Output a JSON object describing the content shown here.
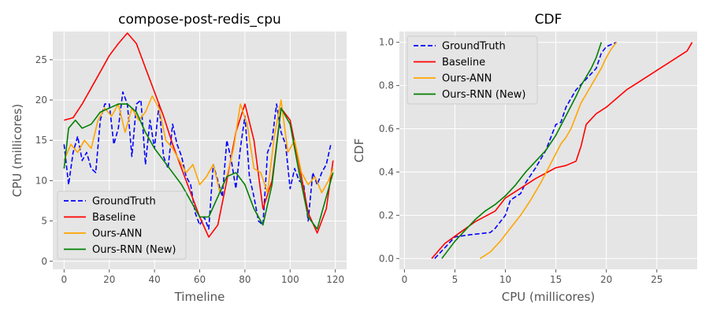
{
  "chart_data": [
    {
      "type": "line",
      "title": "compose-post-redis_cpu",
      "xlabel": "Timeline",
      "ylabel": "CPU (millicores)",
      "xlim": [
        -5,
        125
      ],
      "ylim": [
        -1,
        28.5
      ],
      "xticks": [
        0,
        20,
        40,
        60,
        80,
        100,
        120
      ],
      "yticks": [
        0,
        5,
        10,
        15,
        20,
        25
      ],
      "grid": true,
      "legend_position": "lower-left",
      "series": [
        {
          "name": "GroundTruth",
          "color": "#0000ff",
          "dash": "dashed",
          "x": [
            0,
            2,
            4,
            6,
            8,
            10,
            12,
            14,
            16,
            18,
            20,
            22,
            24,
            26,
            28,
            30,
            32,
            34,
            36,
            38,
            40,
            42,
            44,
            46,
            48,
            50,
            52,
            54,
            56,
            58,
            60,
            62,
            64,
            66,
            68,
            70,
            72,
            74,
            76,
            78,
            80,
            82,
            84,
            86,
            88,
            90,
            92,
            94,
            96,
            98,
            100,
            102,
            104,
            106,
            108,
            110,
            112,
            114,
            116,
            118
          ],
          "y": [
            14.5,
            9.5,
            13.5,
            15.5,
            12.5,
            13.5,
            11.5,
            11.0,
            17.5,
            19.5,
            19.5,
            14.5,
            16.5,
            21.0,
            19.5,
            13.0,
            19.5,
            20.0,
            12.0,
            17.5,
            14.0,
            19.5,
            13.0,
            11.5,
            17.0,
            14.5,
            13.0,
            10.5,
            9.5,
            6.0,
            4.5,
            5.5,
            4.0,
            12.0,
            10.0,
            8.0,
            15.0,
            12.5,
            9.0,
            14.0,
            18.0,
            10.5,
            8.0,
            5.0,
            4.5,
            13.5,
            15.0,
            19.5,
            16.0,
            14.5,
            9.0,
            11.5,
            10.0,
            9.5,
            5.0,
            11.0,
            9.5,
            11.0,
            12.0,
            14.5
          ]
        },
        {
          "name": "Baseline",
          "color": "#ff0000",
          "dash": "solid",
          "x": [
            0,
            4,
            8,
            12,
            16,
            20,
            24,
            28,
            32,
            36,
            40,
            44,
            48,
            52,
            56,
            60,
            64,
            68,
            72,
            76,
            80,
            84,
            88,
            92,
            96,
            100,
            104,
            108,
            112,
            116,
            119
          ],
          "y": [
            17.5,
            17.8,
            19.5,
            21.5,
            23.5,
            25.5,
            27.0,
            28.3,
            27.0,
            24.0,
            21.0,
            18.0,
            14.5,
            11.5,
            8.5,
            5.5,
            3.0,
            4.5,
            10.0,
            16.0,
            19.5,
            15.0,
            6.5,
            10.0,
            19.0,
            17.5,
            12.0,
            6.0,
            3.5,
            6.5,
            12.5
          ]
        },
        {
          "name": "Ours-ANN",
          "color": "#ffa500",
          "dash": "solid",
          "x": [
            0,
            3,
            6,
            9,
            12,
            15,
            18,
            21,
            24,
            27,
            30,
            33,
            36,
            39,
            42,
            45,
            48,
            51,
            54,
            57,
            60,
            63,
            66,
            69,
            72,
            75,
            78,
            81,
            84,
            87,
            90,
            93,
            96,
            99,
            102,
            105,
            108,
            111,
            114,
            117,
            119
          ],
          "y": [
            12.5,
            14.5,
            13.5,
            15.0,
            14.0,
            17.5,
            19.0,
            18.0,
            19.5,
            16.0,
            19.0,
            17.5,
            18.5,
            20.5,
            19.0,
            15.0,
            14.0,
            12.5,
            11.0,
            12.0,
            9.5,
            10.5,
            12.0,
            8.5,
            10.5,
            14.0,
            19.5,
            17.0,
            11.5,
            11.0,
            8.5,
            15.5,
            20.0,
            13.5,
            15.0,
            11.0,
            9.5,
            10.5,
            8.5,
            10.0,
            11.5
          ]
        },
        {
          "name": "Ours-RNN (New)",
          "color": "#008000",
          "dash": "solid",
          "x": [
            0,
            2,
            5,
            8,
            12,
            16,
            20,
            24,
            28,
            32,
            36,
            40,
            44,
            48,
            52,
            56,
            60,
            64,
            68,
            72,
            76,
            80,
            84,
            88,
            92,
            96,
            100,
            104,
            108,
            112,
            116,
            119
          ],
          "y": [
            11.5,
            16.5,
            17.5,
            16.5,
            17.0,
            18.5,
            19.0,
            19.5,
            19.5,
            18.5,
            16.0,
            14.0,
            12.5,
            11.0,
            9.5,
            7.5,
            5.5,
            5.5,
            8.0,
            10.5,
            11.0,
            9.5,
            6.5,
            4.5,
            9.5,
            19.0,
            17.0,
            11.0,
            5.5,
            4.0,
            8.0,
            11.0
          ]
        }
      ]
    },
    {
      "type": "line",
      "title": "CDF",
      "xlabel": "CPU (millicores)",
      "ylabel": "CDF",
      "xlim": [
        -0.5,
        29
      ],
      "ylim": [
        -0.05,
        1.05
      ],
      "xticks": [
        0,
        5,
        10,
        15,
        20,
        25
      ],
      "yticks": [
        0.0,
        0.2,
        0.4,
        0.6,
        0.8,
        1.0
      ],
      "grid": true,
      "legend_position": "top-left",
      "series": [
        {
          "name": "GroundTruth",
          "color": "#0000ff",
          "dash": "dashed",
          "x": [
            3.0,
            4.0,
            5.0,
            6.5,
            8.5,
            9.0,
            10.0,
            10.5,
            11.5,
            12.0,
            13.0,
            14.0,
            15.0,
            15.5,
            16.0,
            17.0,
            18.0,
            19.0,
            19.5,
            20.0,
            21.0
          ],
          "y": [
            0.0,
            0.05,
            0.1,
            0.11,
            0.12,
            0.14,
            0.2,
            0.27,
            0.3,
            0.35,
            0.42,
            0.5,
            0.62,
            0.63,
            0.7,
            0.78,
            0.83,
            0.88,
            0.95,
            0.98,
            1.0
          ]
        },
        {
          "name": "Baseline",
          "color": "#ff0000",
          "dash": "solid",
          "x": [
            2.7,
            4.0,
            5.5,
            7.0,
            9.0,
            10.0,
            11.0,
            13.0,
            15.0,
            16.0,
            17.0,
            17.5,
            18.0,
            19.0,
            20.0,
            21.0,
            22.0,
            23.0,
            24.0,
            25.0,
            26.0,
            27.0,
            28.0,
            28.5
          ],
          "y": [
            0.0,
            0.07,
            0.12,
            0.17,
            0.22,
            0.28,
            0.31,
            0.37,
            0.42,
            0.43,
            0.45,
            0.52,
            0.62,
            0.67,
            0.7,
            0.74,
            0.78,
            0.81,
            0.84,
            0.87,
            0.9,
            0.93,
            0.96,
            1.0
          ]
        },
        {
          "name": "Ours-ANN",
          "color": "#ffa500",
          "dash": "solid",
          "x": [
            7.5,
            8.5,
            9.5,
            10.5,
            11.5,
            12.5,
            13.5,
            14.5,
            15.5,
            16.0,
            16.5,
            17.0,
            17.5,
            18.0,
            18.5,
            19.0,
            19.5,
            20.0,
            20.5,
            21.0
          ],
          "y": [
            0.0,
            0.03,
            0.08,
            0.14,
            0.2,
            0.27,
            0.35,
            0.44,
            0.53,
            0.56,
            0.6,
            0.66,
            0.72,
            0.76,
            0.8,
            0.84,
            0.88,
            0.93,
            0.97,
            1.0
          ]
        },
        {
          "name": "Ours-RNN (New)",
          "color": "#008000",
          "dash": "solid",
          "x": [
            3.7,
            5.0,
            6.0,
            7.0,
            8.0,
            9.0,
            10.0,
            11.0,
            12.0,
            13.0,
            14.0,
            15.0,
            16.0,
            17.0,
            17.5,
            18.0,
            18.5,
            19.0,
            19.5
          ],
          "y": [
            0.0,
            0.08,
            0.13,
            0.18,
            0.22,
            0.25,
            0.29,
            0.34,
            0.4,
            0.45,
            0.5,
            0.57,
            0.66,
            0.75,
            0.8,
            0.84,
            0.88,
            0.93,
            1.0
          ]
        }
      ]
    }
  ]
}
